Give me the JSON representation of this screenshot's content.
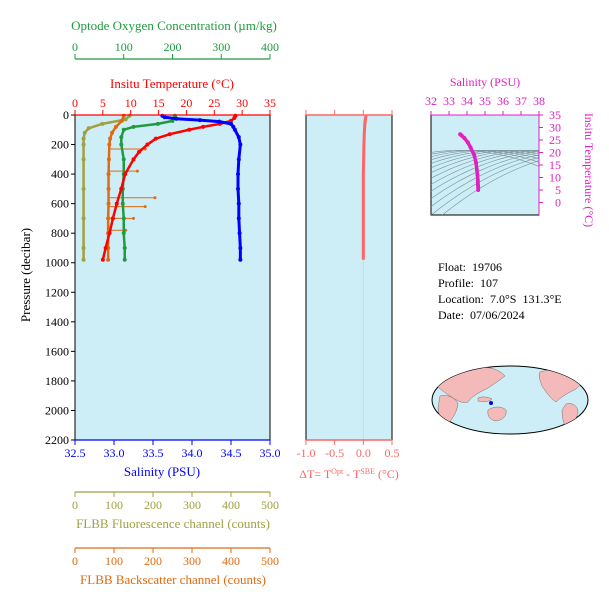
{
  "colors": {
    "oxygen": "#1f9a3f",
    "temperature": "#ff0000",
    "salinity": "#0000ff",
    "fluorescence": "#a0a040",
    "backscatter": "#e06a10",
    "delta": "#ff6464",
    "magenta": "#e020c0",
    "panel_bg": "#cdeef6",
    "land": "#f4b9b9"
  },
  "info": {
    "float_label": "Float:",
    "float_value": "19706",
    "profile_label": "Profile:",
    "profile_value": "107",
    "location_label": "Location:",
    "location_value": "7.0°S  131.3°E",
    "date_label": "Date:",
    "date_value": "07/06/2024"
  },
  "chart_data": [
    {
      "type": "line",
      "id": "profile",
      "ylabel": "Pressure (decibar)",
      "ylim": [
        2200,
        0
      ],
      "yticks": [
        0,
        200,
        400,
        600,
        800,
        1000,
        1200,
        1400,
        1600,
        1800,
        2000,
        2200
      ],
      "axes": {
        "oxygen": {
          "label": "Optode Oxygen Concentration (µm/kg)",
          "lim": [
            0,
            400
          ],
          "ticks": [
            0,
            100,
            200,
            300,
            400
          ]
        },
        "temperature": {
          "label": "Insitu Temperature (°C)",
          "lim": [
            0,
            35
          ],
          "ticks": [
            0,
            5,
            10,
            15,
            20,
            25,
            30,
            35
          ]
        },
        "salinity": {
          "label": "Salinity (PSU)",
          "lim": [
            32.5,
            35.0
          ],
          "ticks": [
            32.5,
            33.0,
            33.5,
            34.0,
            34.5,
            35.0
          ],
          "tick_labels": [
            "32.5",
            "33.0",
            "33.5",
            "34.0",
            "34.5",
            "35.0"
          ]
        },
        "fluorescence": {
          "label": "FLBB Fluorescence channel (counts)",
          "lim": [
            0,
            500
          ],
          "ticks": [
            0,
            100,
            200,
            300,
            400,
            500
          ]
        },
        "backscatter": {
          "label": "FLBB Backscatter channel (counts)",
          "lim": [
            0,
            500
          ],
          "ticks": [
            0,
            100,
            200,
            300,
            400,
            500
          ]
        }
      },
      "series": [
        {
          "key": "oxygen",
          "pressure": [
            5,
            20,
            40,
            60,
            80,
            100,
            150,
            200,
            300,
            400,
            500,
            600,
            700,
            800,
            900,
            980
          ],
          "values": [
            205,
            205,
            200,
            170,
            120,
            100,
            95,
            95,
            100,
            100,
            98,
            98,
            100,
            100,
            102,
            102
          ]
        },
        {
          "key": "temperature",
          "pressure": [
            5,
            20,
            40,
            60,
            80,
            100,
            130,
            160,
            200,
            250,
            300,
            400,
            500,
            600,
            700,
            800,
            900,
            980
          ],
          "values": [
            28.8,
            28.6,
            28.0,
            26.0,
            23.0,
            20.5,
            17.0,
            14.5,
            13.0,
            11.5,
            10.5,
            9.0,
            8.3,
            7.5,
            6.8,
            6.2,
            5.5,
            5.0
          ]
        },
        {
          "key": "salinity",
          "pressure": [
            5,
            15,
            25,
            35,
            45,
            60,
            80,
            100,
            150,
            200,
            300,
            400,
            500,
            600,
            700,
            800,
            900,
            980
          ],
          "values": [
            33.62,
            33.65,
            33.8,
            34.1,
            34.35,
            34.5,
            34.53,
            34.55,
            34.6,
            34.62,
            34.6,
            34.59,
            34.59,
            34.6,
            34.6,
            34.61,
            34.62,
            34.62
          ]
        },
        {
          "key": "fluorescence",
          "pressure": [
            5,
            30,
            60,
            90,
            120,
            160,
            200,
            300,
            500,
            700,
            900,
            980
          ],
          "values": [
            140,
            130,
            70,
            35,
            25,
            22,
            22,
            22,
            22,
            22,
            22,
            22
          ]
        },
        {
          "key": "backscatter",
          "pressure": [
            5,
            40,
            80,
            120,
            160,
            200,
            300,
            400,
            500,
            600,
            700,
            800,
            900,
            980
          ],
          "values": [
            125,
            120,
            105,
            95,
            90,
            88,
            87,
            86,
            86,
            86,
            85,
            85,
            85,
            85
          ]
        }
      ],
      "backscatter_spikes": [
        {
          "pressure": 230,
          "value": 180
        },
        {
          "pressure": 380,
          "value": 160
        },
        {
          "pressure": 560,
          "value": 205
        },
        {
          "pressure": 620,
          "value": 180
        },
        {
          "pressure": 700,
          "value": 150
        },
        {
          "pressure": 780,
          "value": 130
        }
      ]
    },
    {
      "type": "line",
      "id": "delta",
      "xlabel": "ΔT= T^Opt - T^SBE (°C)",
      "xlim": [
        -1.0,
        0.5
      ],
      "xticks": [
        -1.0,
        -0.5,
        0.0,
        0.5
      ],
      "xtick_labels": [
        "-1.0",
        "-0.5",
        "0.0",
        "0.5"
      ],
      "ylim": [
        2200,
        0
      ],
      "series": [
        {
          "pressure": [
            5,
            20,
            50,
            100,
            200,
            400,
            600,
            800,
            980
          ],
          "values": [
            0.05,
            0.04,
            0.03,
            0.02,
            0.01,
            0.0,
            0.0,
            0.0,
            0.0
          ]
        }
      ]
    },
    {
      "type": "scatter",
      "id": "ts",
      "xlabel": "Salinity (PSU)",
      "ylabel": "Insitu Temperature (°C)",
      "xlim": [
        32,
        38
      ],
      "ylim": [
        -5,
        35
      ],
      "xticks": [
        32,
        33,
        34,
        35,
        36,
        37,
        38
      ],
      "yticks": [
        0,
        5,
        10,
        15,
        20,
        25,
        30,
        35
      ],
      "series": [
        {
          "salinity": [
            33.62,
            33.7,
            33.85,
            34.05,
            34.2,
            34.4,
            34.5,
            34.55,
            34.58,
            34.6,
            34.6,
            34.61,
            34.62,
            34.62
          ],
          "temperature": [
            27.3,
            26.8,
            25.8,
            24.0,
            22.0,
            19.0,
            16.0,
            13.0,
            11.0,
            9.0,
            8.0,
            7.0,
            6.0,
            5.0
          ]
        }
      ]
    }
  ]
}
